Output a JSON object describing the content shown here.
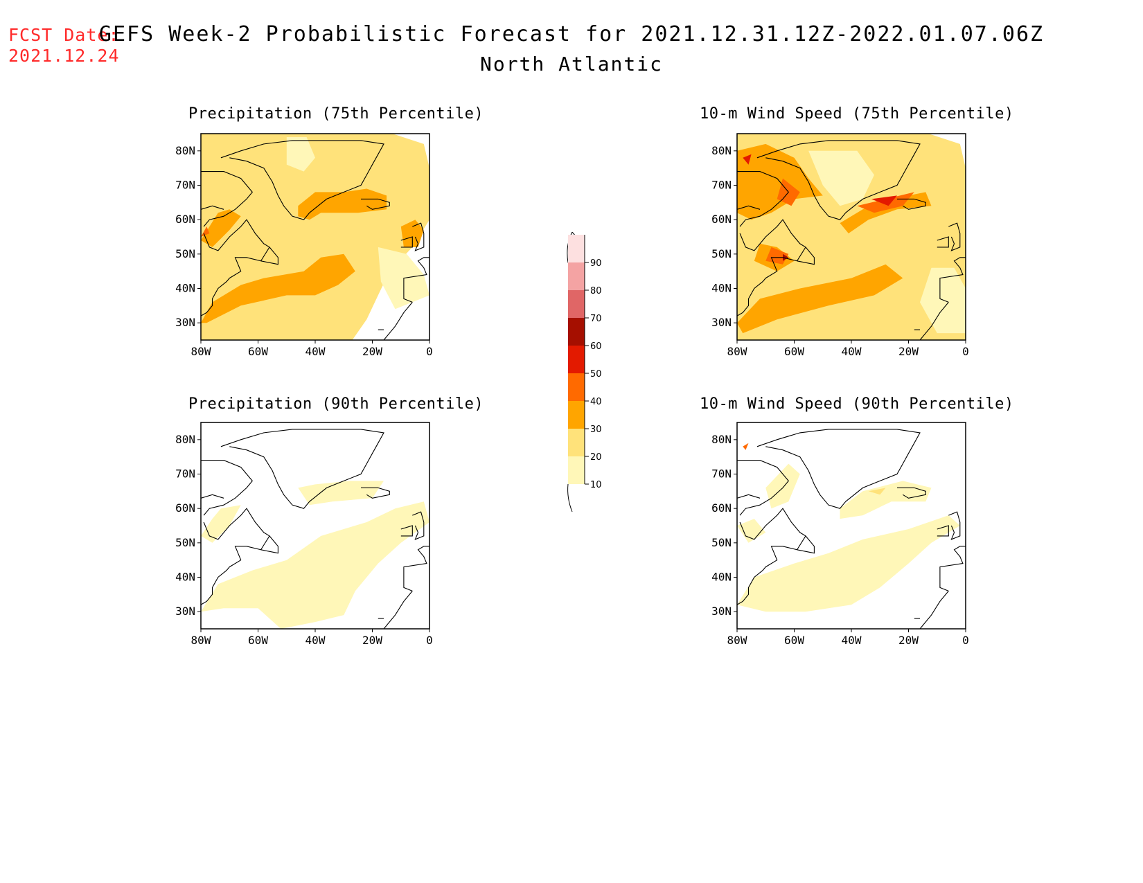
{
  "header": {
    "fcst_label": "FCST Date:",
    "fcst_date": "2021.12.24",
    "title": "GEFS Week-2 Probabilistic Forecast for 2021.12.31.12Z-2022.01.07.06Z",
    "subtitle": "North Atlantic"
  },
  "panels": [
    {
      "title": "Precipitation (75th Percentile)",
      "pattern": "precip75"
    },
    {
      "title": "10-m Wind Speed (75th Percentile)",
      "pattern": "wind75"
    },
    {
      "title": "Precipitation (90th Percentile)",
      "pattern": "precip90"
    },
    {
      "title": "10-m Wind Speed (90th Percentile)",
      "pattern": "wind90"
    }
  ],
  "axes": {
    "lat_labels": [
      "80N",
      "70N",
      "60N",
      "50N",
      "40N",
      "30N"
    ],
    "lon_labels": [
      "80W",
      "60W",
      "40W",
      "20W",
      "0"
    ]
  },
  "colorbar": {
    "levels": [
      "90",
      "80",
      "70",
      "60",
      "50",
      "40",
      "30",
      "20",
      "10"
    ],
    "colors": [
      "#fde0e0",
      "#f4a3a3",
      "#e06666",
      "#a50f00",
      "#e31a00",
      "#ff6a00",
      "#ffa500",
      "#ffe27a",
      "#fff7b8"
    ]
  },
  "map_style": {
    "lon_range": [
      -80,
      0
    ],
    "lat_range": [
      25,
      85
    ],
    "fill_low": "#fff7b8",
    "fill_20": "#ffe27a",
    "fill_30": "#ffa500",
    "fill_40": "#ff6a00",
    "fill_50": "#e31a00",
    "fill_60": "#a50f00"
  }
}
